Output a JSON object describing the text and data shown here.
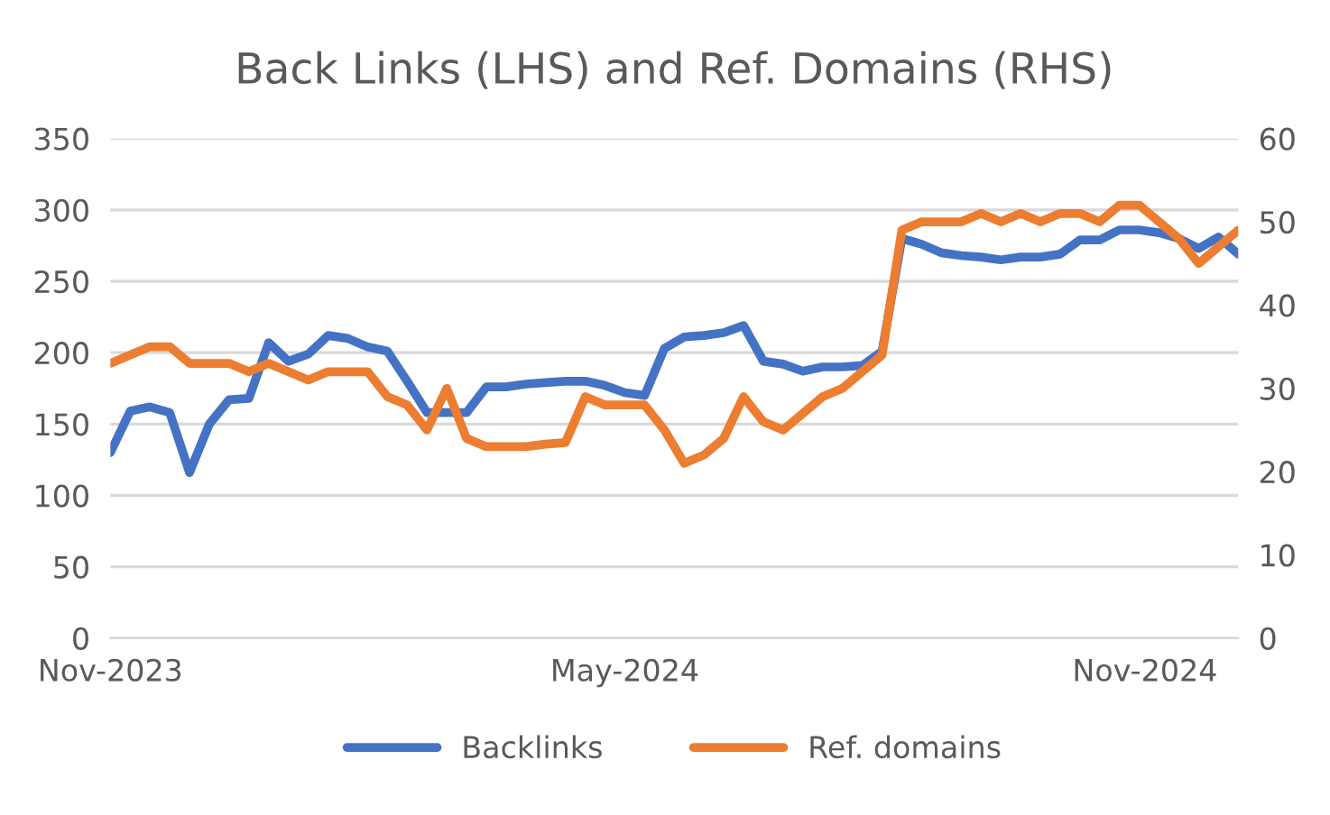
{
  "chart_data": {
    "type": "line",
    "title": "Back Links (LHS) and Ref. Domains (RHS)",
    "x": [
      "2023-11-01",
      "2023-11-08",
      "2023-11-15",
      "2023-11-22",
      "2023-11-29",
      "2023-12-06",
      "2023-12-13",
      "2023-12-20",
      "2023-12-27",
      "2024-01-03",
      "2024-01-10",
      "2024-01-17",
      "2024-01-24",
      "2024-01-31",
      "2024-02-07",
      "2024-02-14",
      "2024-02-21",
      "2024-02-28",
      "2024-03-06",
      "2024-03-13",
      "2024-03-20",
      "2024-03-27",
      "2024-04-03",
      "2024-04-10",
      "2024-04-17",
      "2024-04-24",
      "2024-05-01",
      "2024-05-08",
      "2024-05-15",
      "2024-05-22",
      "2024-05-29",
      "2024-06-05",
      "2024-06-12",
      "2024-06-19",
      "2024-06-26",
      "2024-07-03",
      "2024-07-10",
      "2024-07-17",
      "2024-07-24",
      "2024-07-31",
      "2024-08-07",
      "2024-08-14",
      "2024-08-21",
      "2024-08-28",
      "2024-09-04",
      "2024-09-11",
      "2024-09-18",
      "2024-09-25",
      "2024-10-02",
      "2024-10-09",
      "2024-10-16",
      "2024-10-23",
      "2024-10-30",
      "2024-11-06",
      "2024-11-13",
      "2024-11-20",
      "2024-11-27",
      "2024-12-04"
    ],
    "series": [
      {
        "name": "Backlinks",
        "color": "#4472c4",
        "values": [
          130,
          159,
          162,
          158,
          116,
          150,
          167,
          168,
          207,
          194,
          199,
          212,
          210,
          204,
          201,
          180,
          158,
          158,
          158,
          176,
          176,
          178,
          179,
          180,
          180,
          177,
          172,
          170,
          203,
          211,
          212,
          214,
          219,
          194,
          192,
          187,
          190,
          190,
          191,
          201,
          280,
          276,
          270,
          268,
          267,
          265,
          267,
          267,
          269,
          279,
          279,
          286,
          286,
          284,
          280,
          273,
          281,
          269
        ]
      },
      {
        "name": "Ref. domains",
        "color": "#ed7d31",
        "axis": "y2",
        "values": [
          33,
          34,
          35,
          35,
          33,
          33,
          33,
          32,
          33,
          32,
          31,
          32,
          32,
          32,
          29,
          28,
          25,
          30,
          24,
          23,
          23,
          23,
          23.3,
          23.5,
          29,
          28,
          28,
          28,
          25,
          21,
          22,
          24,
          29,
          26,
          25,
          27,
          29,
          30,
          32,
          34,
          49,
          50,
          50,
          50,
          51,
          50,
          51,
          50,
          51,
          51,
          50,
          52,
          52,
          50,
          48,
          45,
          47,
          49
        ]
      }
    ],
    "xlim": [
      "2023-11-01",
      "2024-12-04"
    ],
    "xticks": [
      {
        "value": "2023-11-01",
        "label": "Nov-2023"
      },
      {
        "value": "2024-05-01",
        "label": "May-2024"
      },
      {
        "value": "2024-11-01",
        "label": "Nov-2024"
      }
    ],
    "ylim": [
      0,
      350
    ],
    "yticks": [
      0,
      50,
      100,
      150,
      200,
      250,
      300,
      350
    ],
    "y2lim": [
      0,
      60
    ],
    "y2ticks": [
      0,
      10,
      20,
      30,
      40,
      50,
      60
    ],
    "grid": "y",
    "legend": "bottom",
    "marker": "none",
    "line_style": "solid"
  }
}
